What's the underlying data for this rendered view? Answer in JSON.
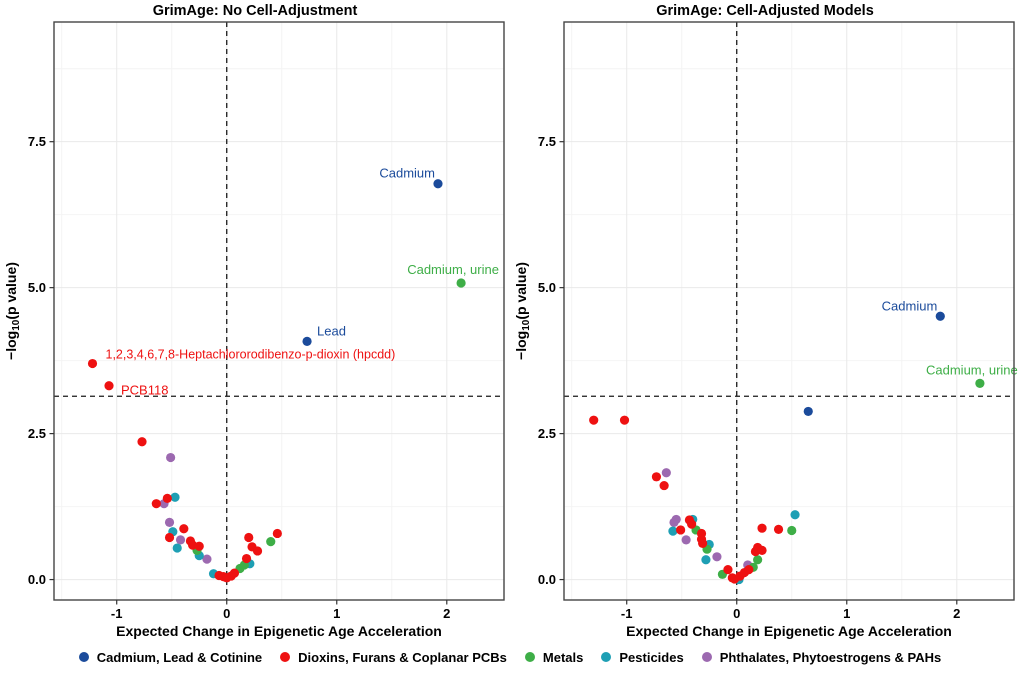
{
  "figure": {
    "x_axis_label": "Expected Change in Epigenetic Age Acceleration",
    "y_axis": {
      "prefix": "−log",
      "sub": "10",
      "suffix": "(p value)"
    },
    "legend": {
      "items": [
        {
          "label": "Cadmium, Lead & Cotinine",
          "color": "#1B4B9B"
        },
        {
          "label": "Dioxins, Furans & Coplanar PCBs",
          "color": "#EE1111"
        },
        {
          "label": "Metals",
          "color": "#3EAE47"
        },
        {
          "label": "Pesticides",
          "color": "#1E9FB4"
        },
        {
          "label": "Phthalates, Phytoestrogens & PAHs",
          "color": "#9C69B0"
        }
      ]
    }
  },
  "chart_data": [
    {
      "type": "scatter",
      "title": "GrimAge: No Cell-Adjustment",
      "xlabel": "Expected Change in Epigenetic Age Acceleration",
      "ylabel": "−log10(p value)",
      "xlim": [
        -1.57,
        2.52
      ],
      "ylim": [
        -0.35,
        9.55
      ],
      "x_ticks": [
        "-1",
        "0",
        "1",
        "2"
      ],
      "x_tick_values": [
        -1,
        0,
        1,
        2
      ],
      "y_ticks": [
        "0.0",
        "2.5",
        "5.0",
        "7.5"
      ],
      "y_tick_values": [
        0,
        2.5,
        5,
        7.5
      ],
      "x_minor": [
        -1.5,
        -0.5,
        0.5,
        1.5
      ],
      "y_minor": [
        1.25,
        3.75,
        6.25,
        8.75
      ],
      "grid": true,
      "threshold_line_y": 3.14,
      "vline_x": 0,
      "series": [
        {
          "name": "Phthalates, Phytoestrogens & PAHs",
          "color": "#9C69B0",
          "points": [
            {
              "x": -0.51,
              "y": 2.09
            },
            {
              "x": -0.57,
              "y": 1.3
            },
            {
              "x": -0.52,
              "y": 0.98
            },
            {
              "x": -0.42,
              "y": 0.68
            },
            {
              "x": -0.18,
              "y": 0.35
            }
          ]
        },
        {
          "name": "Pesticides",
          "color": "#1E9FB4",
          "points": [
            {
              "x": -0.47,
              "y": 1.41
            },
            {
              "x": -0.49,
              "y": 0.82
            },
            {
              "x": -0.45,
              "y": 0.54
            },
            {
              "x": -0.25,
              "y": 0.41
            },
            {
              "x": -0.12,
              "y": 0.1
            },
            {
              "x": 0.21,
              "y": 0.27
            }
          ]
        },
        {
          "name": "Metals",
          "color": "#3EAE47",
          "points": [
            {
              "x": 2.13,
              "y": 5.08,
              "label": "Cadmium, urine",
              "label_pos": "center-above"
            },
            {
              "x": -0.27,
              "y": 0.5
            },
            {
              "x": 0.12,
              "y": 0.19
            },
            {
              "x": 0.16,
              "y": 0.25
            },
            {
              "x": 0.4,
              "y": 0.65
            }
          ]
        },
        {
          "name": "Dioxins, Furans & Coplanar PCBs",
          "color": "#EE1111",
          "points": [
            {
              "x": -1.22,
              "y": 3.7,
              "label": "1,2,3,4,6,7,8-Heptachlororodibenzo-p-dioxin (hpcdd)",
              "label_pos": "right"
            },
            {
              "x": -1.07,
              "y": 3.32,
              "label": "PCB118",
              "label_pos": "right-below"
            },
            {
              "x": -0.77,
              "y": 2.36
            },
            {
              "x": -0.64,
              "y": 1.3
            },
            {
              "x": -0.54,
              "y": 1.39
            },
            {
              "x": -0.52,
              "y": 0.72
            },
            {
              "x": -0.39,
              "y": 0.87
            },
            {
              "x": -0.33,
              "y": 0.66
            },
            {
              "x": -0.31,
              "y": 0.59
            },
            {
              "x": -0.25,
              "y": 0.57
            },
            {
              "x": -0.07,
              "y": 0.07
            },
            {
              "x": -0.03,
              "y": 0.05
            },
            {
              "x": 0.0,
              "y": 0.03
            },
            {
              "x": 0.04,
              "y": 0.06
            },
            {
              "x": 0.07,
              "y": 0.11
            },
            {
              "x": 0.18,
              "y": 0.36
            },
            {
              "x": 0.2,
              "y": 0.72
            },
            {
              "x": 0.23,
              "y": 0.56
            },
            {
              "x": 0.28,
              "y": 0.49
            },
            {
              "x": 0.46,
              "y": 0.79
            }
          ]
        },
        {
          "name": "Cadmium, Lead & Cotinine",
          "color": "#1B4B9B",
          "points": [
            {
              "x": 1.92,
              "y": 6.78,
              "label": "Cadmium",
              "label_pos": "end-above"
            },
            {
              "x": 0.73,
              "y": 4.08,
              "label": "Lead",
              "label_pos": "right-above"
            }
          ]
        }
      ]
    },
    {
      "type": "scatter",
      "title": "GrimAge: Cell-Adjusted Models",
      "xlabel": "Expected Change in Epigenetic Age Acceleration",
      "ylabel": "−log10(p value)",
      "xlim": [
        -1.57,
        2.52
      ],
      "ylim": [
        -0.35,
        9.55
      ],
      "x_ticks": [
        "-1",
        "0",
        "1",
        "2"
      ],
      "x_tick_values": [
        -1,
        0,
        1,
        2
      ],
      "y_ticks": [
        "0.0",
        "2.5",
        "5.0",
        "7.5"
      ],
      "y_tick_values": [
        0,
        2.5,
        5,
        7.5
      ],
      "x_minor": [
        -1.5,
        -0.5,
        0.5,
        1.5
      ],
      "y_minor": [
        1.25,
        3.75,
        6.25,
        8.75
      ],
      "grid": true,
      "threshold_line_y": 3.14,
      "vline_x": 0,
      "series": [
        {
          "name": "Phthalates, Phytoestrogens & PAHs",
          "color": "#9C69B0",
          "points": [
            {
              "x": -0.64,
              "y": 1.83
            },
            {
              "x": -0.57,
              "y": 0.98
            },
            {
              "x": -0.55,
              "y": 1.03
            },
            {
              "x": -0.46,
              "y": 0.68
            },
            {
              "x": -0.18,
              "y": 0.39
            },
            {
              "x": 0.1,
              "y": 0.25
            }
          ]
        },
        {
          "name": "Pesticides",
          "color": "#1E9FB4",
          "points": [
            {
              "x": -0.58,
              "y": 0.83
            },
            {
              "x": -0.4,
              "y": 1.03
            },
            {
              "x": -0.25,
              "y": 0.6
            },
            {
              "x": -0.28,
              "y": 0.34
            },
            {
              "x": 0.02,
              "y": 0.0
            },
            {
              "x": 0.53,
              "y": 1.11
            }
          ]
        },
        {
          "name": "Metals",
          "color": "#3EAE47",
          "points": [
            {
              "x": 2.21,
              "y": 3.36,
              "label": "Cadmium, urine",
              "label_pos": "center-above"
            },
            {
              "x": -0.37,
              "y": 0.85
            },
            {
              "x": -0.27,
              "y": 0.52
            },
            {
              "x": -0.13,
              "y": 0.09
            },
            {
              "x": 0.15,
              "y": 0.21
            },
            {
              "x": 0.19,
              "y": 0.34
            },
            {
              "x": 0.5,
              "y": 0.84
            }
          ]
        },
        {
          "name": "Dioxins, Furans & Coplanar PCBs",
          "color": "#EE1111",
          "points": [
            {
              "x": -1.3,
              "y": 2.73
            },
            {
              "x": -1.02,
              "y": 2.73
            },
            {
              "x": -0.73,
              "y": 1.76
            },
            {
              "x": -0.66,
              "y": 1.61
            },
            {
              "x": -0.51,
              "y": 0.85
            },
            {
              "x": -0.43,
              "y": 1.02
            },
            {
              "x": -0.41,
              "y": 0.95
            },
            {
              "x": -0.32,
              "y": 0.79
            },
            {
              "x": -0.32,
              "y": 0.69
            },
            {
              "x": -0.31,
              "y": 0.62
            },
            {
              "x": -0.08,
              "y": 0.17
            },
            {
              "x": -0.04,
              "y": 0.03
            },
            {
              "x": -0.02,
              "y": 0.01
            },
            {
              "x": 0.03,
              "y": 0.06
            },
            {
              "x": 0.07,
              "y": 0.12
            },
            {
              "x": 0.11,
              "y": 0.17
            },
            {
              "x": 0.17,
              "y": 0.48
            },
            {
              "x": 0.19,
              "y": 0.55
            },
            {
              "x": 0.23,
              "y": 0.5
            },
            {
              "x": 0.23,
              "y": 0.88
            },
            {
              "x": 0.38,
              "y": 0.86
            }
          ]
        },
        {
          "name": "Cadmium, Lead & Cotinine",
          "color": "#1B4B9B",
          "points": [
            {
              "x": 1.85,
              "y": 4.51,
              "label": "Cadmium",
              "label_pos": "end-above"
            },
            {
              "x": 0.65,
              "y": 2.88
            }
          ]
        }
      ]
    }
  ]
}
